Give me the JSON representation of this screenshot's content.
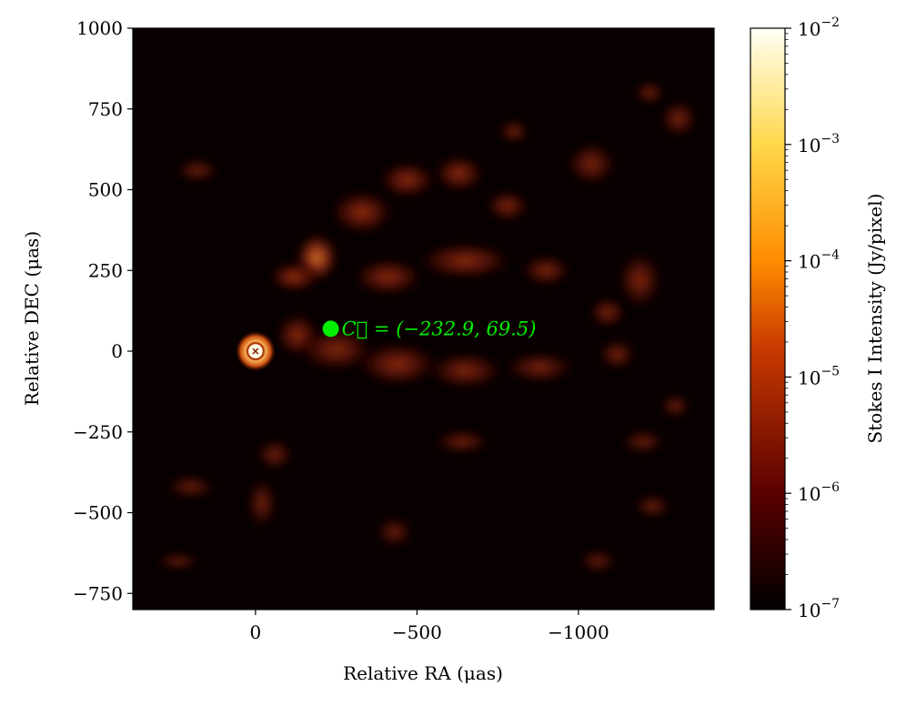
{
  "chart_data": {
    "type": "heatmap",
    "title": "",
    "xlabel": "Relative RA (μas)",
    "ylabel": "Relative DEC (μas)",
    "xlim": [
      380,
      -1420
    ],
    "ylim": [
      -800,
      1000
    ],
    "x_ticks": [
      {
        "value": 0,
        "label": "0"
      },
      {
        "value": -500,
        "label": "−500"
      },
      {
        "value": -1000,
        "label": "−1000"
      }
    ],
    "y_ticks": [
      {
        "value": 1000,
        "label": "1000"
      },
      {
        "value": 750,
        "label": "750"
      },
      {
        "value": 500,
        "label": "500"
      },
      {
        "value": 250,
        "label": "250"
      },
      {
        "value": 0,
        "label": "0"
      },
      {
        "value": -250,
        "label": "−250"
      },
      {
        "value": -500,
        "label": "−500"
      },
      {
        "value": -750,
        "label": "−750"
      }
    ],
    "colorbar": {
      "label": "Stokes I Intensity (Jy/pixel)",
      "scale": "log",
      "colormap": "afmhot",
      "range": [
        1e-07,
        0.01
      ],
      "ticks": [
        {
          "value": 0.01,
          "base": "10",
          "exp": "−2"
        },
        {
          "value": 0.001,
          "base": "10",
          "exp": "−3"
        },
        {
          "value": 0.0001,
          "base": "10",
          "exp": "−4"
        },
        {
          "value": 1e-05,
          "base": "10",
          "exp": "−5"
        },
        {
          "value": 1e-06,
          "base": "10",
          "exp": "−6"
        },
        {
          "value": 1e-07,
          "base": "10",
          "exp": "−7"
        }
      ]
    },
    "core": {
      "x": 0,
      "y": 0
    },
    "centroid": {
      "x": -232.9,
      "y": 69.5,
      "color": "#00ee00",
      "label": "C⃗ = (−232.9, 69.5)"
    },
    "emission_features": [
      {
        "x": -190,
        "y": 290,
        "rx": 70,
        "ry": 80,
        "intensity": 0.85
      },
      {
        "x": -120,
        "y": 230,
        "rx": 80,
        "ry": 50,
        "intensity": 0.7
      },
      {
        "x": -330,
        "y": 430,
        "rx": 100,
        "ry": 70,
        "intensity": 0.65
      },
      {
        "x": -470,
        "y": 530,
        "rx": 90,
        "ry": 60,
        "intensity": 0.6
      },
      {
        "x": -630,
        "y": 550,
        "rx": 80,
        "ry": 60,
        "intensity": 0.6
      },
      {
        "x": -780,
        "y": 450,
        "rx": 70,
        "ry": 50,
        "intensity": 0.5
      },
      {
        "x": -410,
        "y": 230,
        "rx": 110,
        "ry": 60,
        "intensity": 0.6
      },
      {
        "x": -650,
        "y": 280,
        "rx": 150,
        "ry": 60,
        "intensity": 0.6
      },
      {
        "x": -900,
        "y": 250,
        "rx": 80,
        "ry": 50,
        "intensity": 0.5
      },
      {
        "x": -1190,
        "y": 220,
        "rx": 70,
        "ry": 90,
        "intensity": 0.5
      },
      {
        "x": -1090,
        "y": 120,
        "rx": 60,
        "ry": 50,
        "intensity": 0.45
      },
      {
        "x": -130,
        "y": 50,
        "rx": 70,
        "ry": 70,
        "intensity": 0.6
      },
      {
        "x": -250,
        "y": 5,
        "rx": 120,
        "ry": 70,
        "intensity": 0.55
      },
      {
        "x": -440,
        "y": -40,
        "rx": 130,
        "ry": 70,
        "intensity": 0.6
      },
      {
        "x": -650,
        "y": -60,
        "rx": 120,
        "ry": 60,
        "intensity": 0.5
      },
      {
        "x": -880,
        "y": -50,
        "rx": 110,
        "ry": 50,
        "intensity": 0.45
      },
      {
        "x": -1120,
        "y": -10,
        "rx": 60,
        "ry": 50,
        "intensity": 0.4
      },
      {
        "x": -1040,
        "y": 580,
        "rx": 80,
        "ry": 70,
        "intensity": 0.45
      },
      {
        "x": -1310,
        "y": 720,
        "rx": 60,
        "ry": 60,
        "intensity": 0.45
      },
      {
        "x": -1220,
        "y": 800,
        "rx": 50,
        "ry": 40,
        "intensity": 0.35
      },
      {
        "x": -800,
        "y": 680,
        "rx": 50,
        "ry": 40,
        "intensity": 0.35
      },
      {
        "x": 180,
        "y": 560,
        "rx": 70,
        "ry": 40,
        "intensity": 0.3
      },
      {
        "x": -60,
        "y": -320,
        "rx": 60,
        "ry": 50,
        "intensity": 0.35
      },
      {
        "x": -20,
        "y": -470,
        "rx": 50,
        "ry": 80,
        "intensity": 0.35
      },
      {
        "x": -640,
        "y": -280,
        "rx": 90,
        "ry": 40,
        "intensity": 0.35
      },
      {
        "x": -430,
        "y": -560,
        "rx": 60,
        "ry": 50,
        "intensity": 0.3
      },
      {
        "x": -1200,
        "y": -280,
        "rx": 70,
        "ry": 40,
        "intensity": 0.3
      },
      {
        "x": -1230,
        "y": -480,
        "rx": 60,
        "ry": 40,
        "intensity": 0.3
      },
      {
        "x": 200,
        "y": -420,
        "rx": 80,
        "ry": 40,
        "intensity": 0.3
      },
      {
        "x": 240,
        "y": -650,
        "rx": 70,
        "ry": 30,
        "intensity": 0.25
      },
      {
        "x": -1060,
        "y": -650,
        "rx": 60,
        "ry": 40,
        "intensity": 0.25
      },
      {
        "x": -1300,
        "y": -170,
        "rx": 50,
        "ry": 40,
        "intensity": 0.3
      }
    ]
  }
}
